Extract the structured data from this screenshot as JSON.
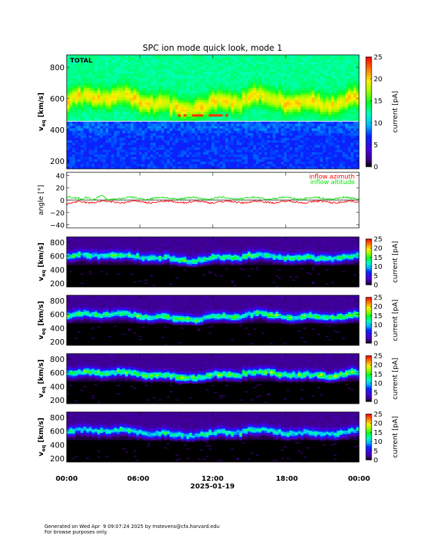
{
  "title": "SPC ion mode quick look, mode 1",
  "xaxis": {
    "ticks": [
      "00:00",
      "06:00",
      "12:00",
      "18:00",
      "00:00"
    ],
    "date_label": "2025-01-19"
  },
  "colorbar": {
    "label": "current [pA]",
    "range": [
      0,
      25
    ],
    "ticks": [
      "0",
      "5",
      "10",
      "15",
      "20",
      "25"
    ],
    "colormap": "rainbow"
  },
  "footer": {
    "line1": "Generated on Wed Apr  9 09:07:24 2025 by mstevens@cfa.harvard.edu",
    "line2": "For browse purposes only."
  },
  "chart_data": [
    {
      "type": "heatmap",
      "panel_label": "TOTAL",
      "ylabel": "v_eq [km/s]",
      "ylim": [
        150,
        880
      ],
      "yticks": [
        "200",
        "400",
        "600",
        "800"
      ],
      "xlim_hours": [
        0,
        24
      ],
      "colorbar_range": [
        0,
        25
      ],
      "band_center_kms": 590,
      "band_peak_pA": 25,
      "low_speed_cutoff_kms": 455
    },
    {
      "type": "line",
      "ylabel": "angle [°]",
      "ylim": [
        -45,
        45
      ],
      "yticks": [
        "40",
        "20",
        "0",
        "−20",
        "−40"
      ],
      "xlim_hours": [
        0,
        24
      ],
      "series": [
        {
          "name": "inflow azimuth",
          "color": "#ff0000",
          "mean_deg": -3
        },
        {
          "name": "inflow altitude",
          "color": "#00e000",
          "mean_deg": 3
        }
      ]
    },
    {
      "type": "heatmap",
      "panel_label": "",
      "ylabel": "v_eq [km/s]",
      "ylim": [
        150,
        880
      ],
      "yticks": [
        "200",
        "400",
        "600",
        "800"
      ],
      "xlim_hours": [
        0,
        24
      ],
      "colorbar_range": [
        0,
        25
      ],
      "band_center_kms": 590,
      "band_peak_pA": 14
    },
    {
      "type": "heatmap",
      "panel_label": "",
      "ylabel": "v_eq [km/s]",
      "ylim": [
        150,
        880
      ],
      "yticks": [
        "200",
        "400",
        "600",
        "800"
      ],
      "xlim_hours": [
        0,
        24
      ],
      "colorbar_range": [
        0,
        25
      ],
      "band_center_kms": 580,
      "band_peak_pA": 15
    },
    {
      "type": "heatmap",
      "panel_label": "",
      "ylabel": "v_eq [km/s]",
      "ylim": [
        150,
        880
      ],
      "yticks": [
        "200",
        "400",
        "600",
        "800"
      ],
      "xlim_hours": [
        0,
        24
      ],
      "colorbar_range": [
        0,
        25
      ],
      "band_center_kms": 585,
      "band_peak_pA": 16
    },
    {
      "type": "heatmap",
      "panel_label": "",
      "ylabel": "v_eq [km/s]",
      "ylim": [
        150,
        880
      ],
      "yticks": [
        "200",
        "400",
        "600",
        "800"
      ],
      "xlim_hours": [
        0,
        24
      ],
      "colorbar_range": [
        0,
        25
      ],
      "band_center_kms": 590,
      "band_peak_pA": 13
    }
  ]
}
